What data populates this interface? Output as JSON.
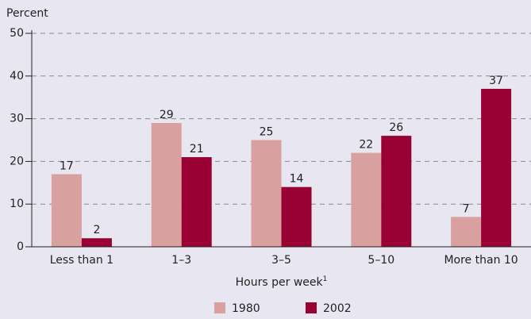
{
  "chart_data": {
    "type": "bar",
    "y_label": "Percent",
    "x_label": "Hours per week",
    "x_label_footnote": "1",
    "categories": [
      "Less than 1",
      "1–3",
      "3–5",
      "5–10",
      "More than 10"
    ],
    "series": [
      {
        "name": "1980",
        "color": "#d9a0a0",
        "values": [
          17,
          29,
          25,
          22,
          7
        ]
      },
      {
        "name": "2002",
        "color": "#990033",
        "values": [
          2,
          21,
          14,
          26,
          37
        ]
      }
    ],
    "ylim": [
      0,
      50
    ],
    "yticks": [
      0,
      10,
      20,
      30,
      40,
      50
    ],
    "grid": true,
    "legend": "bottom"
  }
}
